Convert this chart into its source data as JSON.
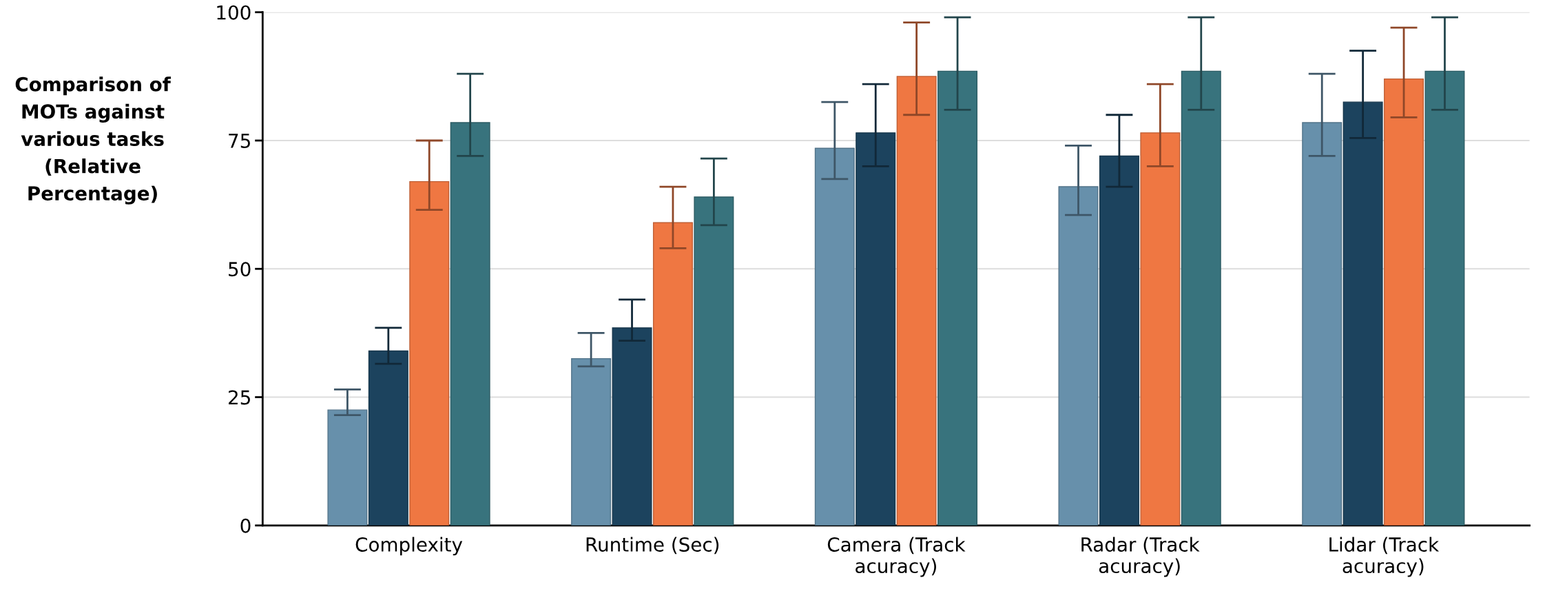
{
  "chart_data": {
    "type": "bar",
    "ylabel": "Comparison of\nMOTs against\nvarious tasks\n(Relative\nPercentage)",
    "categories": [
      "Complexity",
      "Runtime (Sec)",
      "Camera (Track\nacuracy)",
      "Radar (Track\nacuracy)",
      "Lidar (Track\nacuracy)"
    ],
    "series": [
      {
        "color": "#6790ab",
        "values": [
          22.5,
          32.5,
          73.5,
          66,
          78.5
        ],
        "errors": [
          [
            21.5,
            26.5
          ],
          [
            31,
            37.5
          ],
          [
            67.5,
            82.5
          ],
          [
            60.5,
            74
          ],
          [
            72,
            88
          ]
        ]
      },
      {
        "color": "#1c435e",
        "values": [
          34,
          38.5,
          76.5,
          72,
          82.5
        ],
        "errors": [
          [
            31.5,
            38.5
          ],
          [
            36,
            44
          ],
          [
            70,
            86
          ],
          [
            66,
            80
          ],
          [
            75.5,
            92.5
          ]
        ]
      },
      {
        "color": "#ef7742",
        "values": [
          67,
          59,
          87.5,
          76.5,
          87
        ],
        "errors": [
          [
            61.5,
            75
          ],
          [
            54,
            66
          ],
          [
            80,
            98
          ],
          [
            70,
            86
          ],
          [
            79.5,
            97
          ]
        ]
      },
      {
        "color": "#38737d",
        "values": [
          78.5,
          64,
          88.5,
          88.5,
          88.5
        ],
        "errors": [
          [
            72,
            88
          ],
          [
            58.5,
            71.5
          ],
          [
            81,
            99
          ],
          [
            81,
            99
          ],
          [
            81,
            99
          ]
        ]
      }
    ],
    "ylim": [
      0,
      100
    ],
    "yticks": [
      0,
      25,
      50,
      75,
      100
    ],
    "grid": "y"
  }
}
